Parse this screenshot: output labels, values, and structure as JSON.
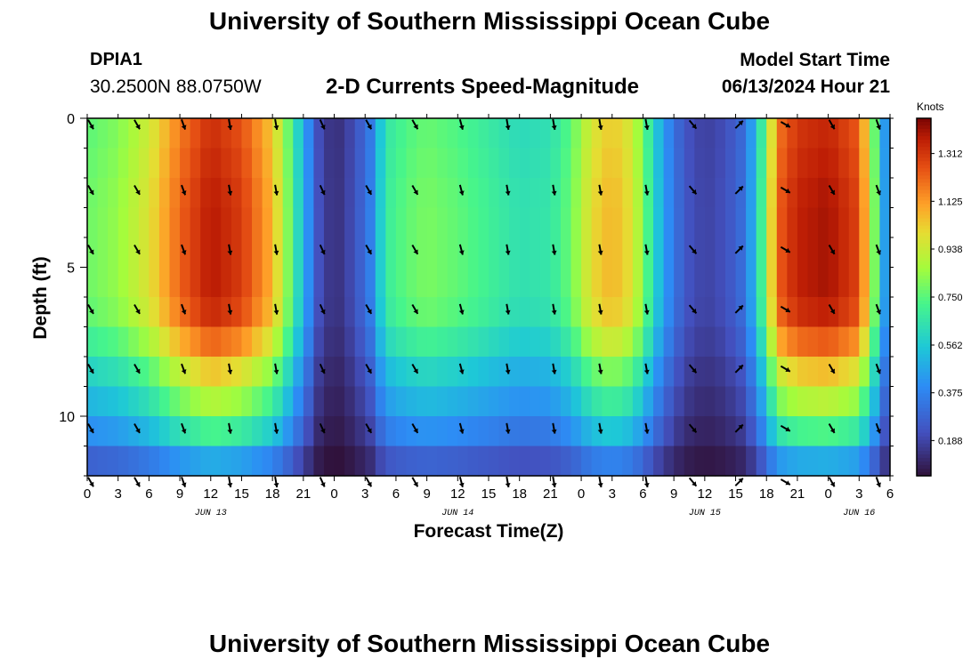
{
  "header": {
    "title": "University of Southern Mississippi Ocean Cube",
    "station": "DPIA1",
    "coords": "30.2500N  88.0750W",
    "subtitle": "2-D Currents Speed-Magnitude",
    "model_start_label": "Model Start Time",
    "model_start_value": "06/13/2024 Hour 21"
  },
  "footer": {
    "title": "University of Southern Mississippi Ocean Cube"
  },
  "chart_data": {
    "type": "heatmap",
    "title": "2-D Currents Speed-Magnitude",
    "xlabel": "Forecast Time(Z)",
    "ylabel": "Depth (ft)",
    "x_tick_labels": [
      "0",
      "3",
      "6",
      "9",
      "12",
      "15",
      "18",
      "21",
      "0",
      "3",
      "6",
      "9",
      "12",
      "15",
      "18",
      "21",
      "0",
      "3",
      "6",
      "9",
      "12",
      "15",
      "18",
      "21",
      "0",
      "3",
      "6"
    ],
    "date_labels": [
      {
        "label": "JUN 13",
        "at_hours_from_start": 12
      },
      {
        "label": "JUN 14",
        "at_hours_from_start": 36
      },
      {
        "label": "JUN 15",
        "at_hours_from_start": 60
      },
      {
        "label": "JUN 16",
        "at_hours_from_start": 75
      }
    ],
    "x_range_hours": [
      0,
      78
    ],
    "y_tick_labels": [
      "0",
      "5",
      "10"
    ],
    "y_ticks_ft": [
      0,
      5,
      10
    ],
    "ylim_ft": [
      0,
      12
    ],
    "colorbar": {
      "title": "Knots",
      "ticks": [
        "0.188",
        "0.375",
        "0.562",
        "0.750",
        "0.938",
        "1.125",
        "1.312"
      ],
      "tick_values": [
        0.188,
        0.375,
        0.562,
        0.75,
        0.938,
        1.125,
        1.312
      ],
      "range": [
        0.05,
        1.45
      ]
    },
    "speed_profile_knots": {
      "hours": [
        0,
        3,
        6,
        9,
        12,
        15,
        18,
        20,
        21,
        22.5,
        24,
        26,
        27.5,
        29,
        31,
        33,
        36,
        39,
        42,
        45,
        47,
        49,
        51,
        53,
        54.5,
        56,
        58,
        60,
        62,
        63.5,
        64.5,
        66,
        67,
        69,
        72,
        75,
        76.5,
        77.5,
        78
      ],
      "values": [
        0.78,
        0.84,
        0.98,
        1.22,
        1.38,
        1.3,
        1.08,
        0.72,
        0.5,
        0.22,
        0.12,
        0.22,
        0.36,
        0.68,
        0.76,
        0.8,
        0.76,
        0.7,
        0.64,
        0.66,
        0.78,
        1.0,
        1.08,
        0.98,
        0.72,
        0.45,
        0.24,
        0.18,
        0.22,
        0.3,
        0.45,
        0.82,
        1.22,
        1.36,
        1.4,
        1.28,
        0.8,
        0.45,
        0.55
      ]
    },
    "depth_profile": {
      "depth_ft": [
        0,
        3,
        6,
        7,
        8,
        9,
        10,
        11,
        12
      ],
      "factor": [
        0.96,
        1.0,
        1.0,
        0.95,
        0.82,
        0.7,
        0.6,
        0.45,
        0.25
      ]
    },
    "vector_depths_ft": [
      0,
      2.2,
      4.2,
      6.2,
      8.2,
      10.2,
      12
    ],
    "vector_columns": [
      {
        "hour": 0,
        "dir_deg": 150
      },
      {
        "hour": 4.5,
        "dir_deg": 150
      },
      {
        "hour": 9,
        "dir_deg": 160
      },
      {
        "hour": 13.5,
        "dir_deg": 170
      },
      {
        "hour": 18,
        "dir_deg": 170
      },
      {
        "hour": 22.5,
        "dir_deg": 155
      },
      {
        "hour": 27,
        "dir_deg": 150
      },
      {
        "hour": 31.5,
        "dir_deg": 150
      },
      {
        "hour": 36,
        "dir_deg": 165
      },
      {
        "hour": 40.5,
        "dir_deg": 170
      },
      {
        "hour": 45,
        "dir_deg": 170
      },
      {
        "hour": 49.5,
        "dir_deg": 170
      },
      {
        "hour": 54,
        "dir_deg": 170
      },
      {
        "hour": 58.5,
        "dir_deg": 140
      },
      {
        "hour": 63,
        "dir_deg": 45
      },
      {
        "hour": 67.5,
        "dir_deg": 120
      },
      {
        "hour": 72,
        "dir_deg": 150
      },
      {
        "hour": 76.5,
        "dir_deg": 160
      }
    ]
  }
}
